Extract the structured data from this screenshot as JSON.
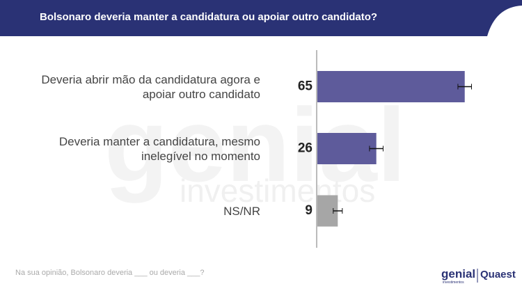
{
  "chart_data": {
    "type": "hbar",
    "title": "Bolsonaro deveria manter a candidatura ou apoiar outro candidato?",
    "categories": [
      "Deveria abrir mão da candidatura agora e apoiar outro candidato",
      "Deveria manter a candidatura, mesmo inelegível no momento",
      "NS/NR"
    ],
    "values": [
      65,
      26,
      9
    ],
    "errors": [
      3,
      3,
      2
    ],
    "colors": [
      "#5e5b9b",
      "#5e5b9b",
      "#a6a6a6"
    ],
    "xlim": [
      0,
      70
    ],
    "footnote": "Na sua opinião, Bolsonaro deveria ___ ou deveria ___?",
    "watermark": [
      "genial",
      "investimentos"
    ],
    "logos": [
      "genial",
      "investimentos",
      "Quaest"
    ]
  }
}
